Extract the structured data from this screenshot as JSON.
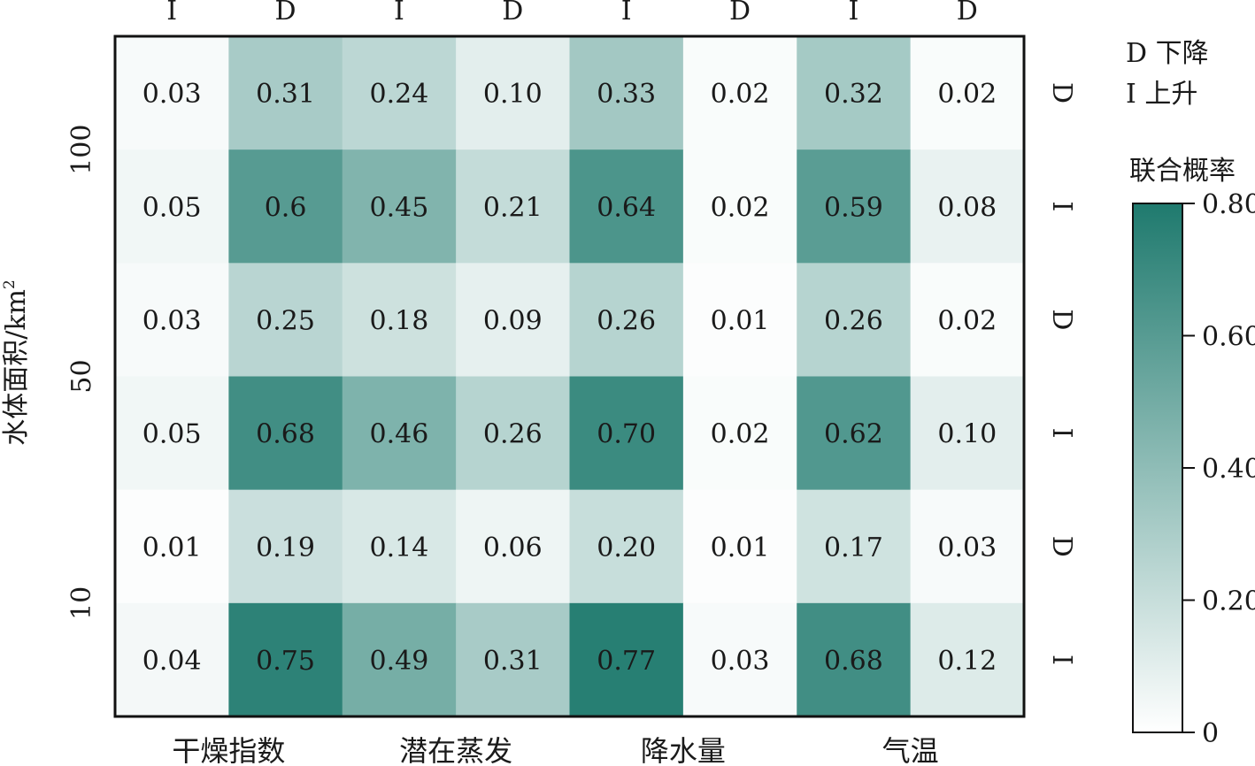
{
  "chart_data": {
    "type": "heatmap",
    "x_groups": [
      "干燥指数",
      "潜在蒸发",
      "降水量",
      "气温"
    ],
    "x_top_labels": [
      "I",
      "D",
      "I",
      "D",
      "I",
      "D",
      "I",
      "D"
    ],
    "y_label": "水体面积/km",
    "y_label_sup": "2",
    "y_groups": [
      "100",
      "50",
      "10"
    ],
    "y_right_labels": [
      "D",
      "I",
      "D",
      "I",
      "D",
      "I"
    ],
    "values": [
      [
        0.03,
        0.31,
        0.24,
        0.1,
        0.33,
        0.02,
        0.32,
        0.02
      ],
      [
        0.05,
        0.6,
        0.45,
        0.21,
        0.64,
        0.02,
        0.59,
        0.08
      ],
      [
        0.03,
        0.25,
        0.18,
        0.09,
        0.26,
        0.01,
        0.26,
        0.02
      ],
      [
        0.05,
        0.68,
        0.46,
        0.26,
        0.7,
        0.02,
        0.62,
        0.1
      ],
      [
        0.01,
        0.19,
        0.14,
        0.06,
        0.2,
        0.01,
        0.17,
        0.03
      ],
      [
        0.04,
        0.75,
        0.49,
        0.31,
        0.77,
        0.03,
        0.68,
        0.12
      ]
    ],
    "value_labels": [
      [
        "0.03",
        "0.31",
        "0.24",
        "0.10",
        "0.33",
        "0.02",
        "0.32",
        "0.02"
      ],
      [
        "0.05",
        "0.6",
        "0.45",
        "0.21",
        "0.64",
        "0.02",
        "0.59",
        "0.08"
      ],
      [
        "0.03",
        "0.25",
        "0.18",
        "0.09",
        "0.26",
        "0.01",
        "0.26",
        "0.02"
      ],
      [
        "0.05",
        "0.68",
        "0.46",
        "0.26",
        "0.70",
        "0.02",
        "0.62",
        "0.10"
      ],
      [
        "0.01",
        "0.19",
        "0.14",
        "0.06",
        "0.20",
        "0.01",
        "0.17",
        "0.03"
      ],
      [
        "0.04",
        "0.75",
        "0.49",
        "0.31",
        "0.77",
        "0.03",
        "0.68",
        "0.12"
      ]
    ],
    "legend_entries": [
      "D 下降",
      "I 上升"
    ],
    "colorbar": {
      "title": "联合概率",
      "min": 0,
      "max": 0.8,
      "ticks": [
        0,
        0.2,
        0.4,
        0.6,
        0.8
      ],
      "tick_labels": [
        "0",
        "0.20",
        "0.40",
        "0.60",
        "0.80"
      ],
      "color_low": "#ffffff",
      "color_high": "#1f7a6e"
    }
  }
}
